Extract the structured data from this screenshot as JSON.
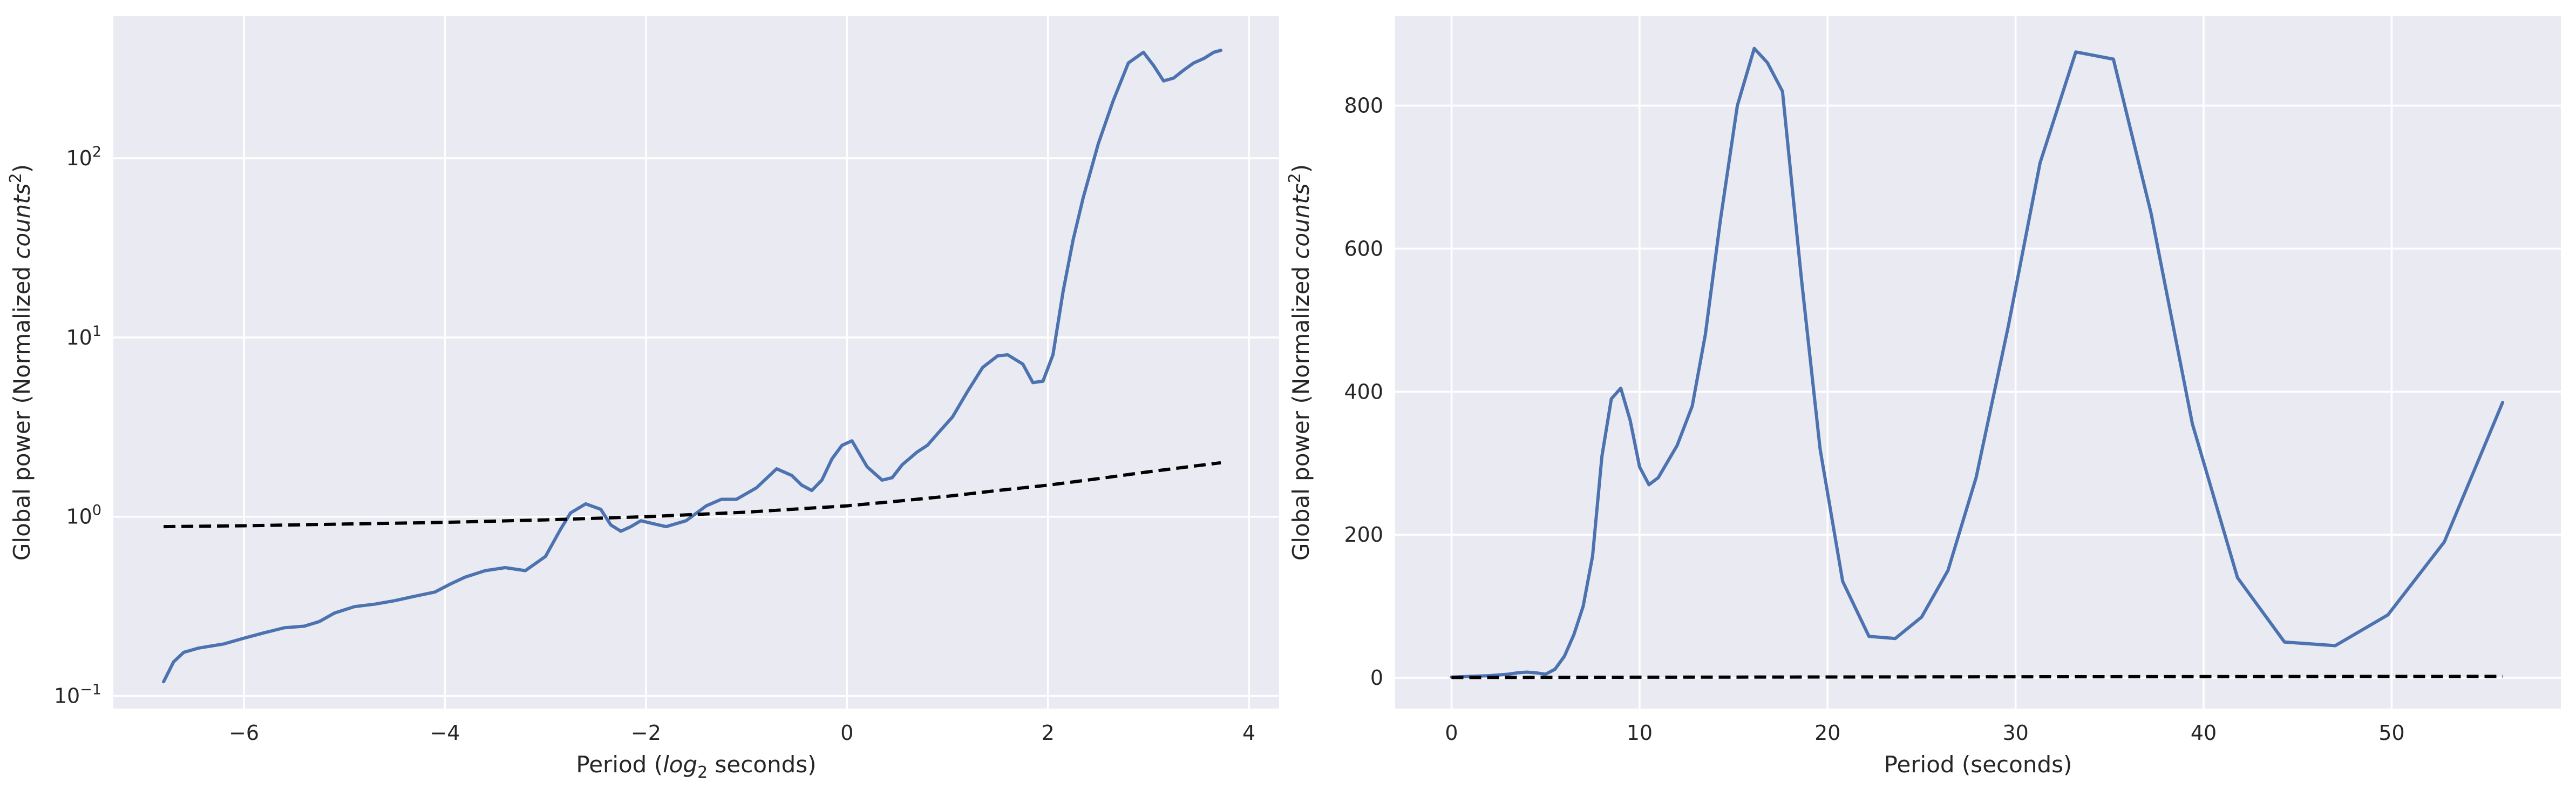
{
  "chart_data": [
    {
      "type": "line",
      "xlabel": "Period (log2 seconds)",
      "xlabel_parts": {
        "pre": "Period (",
        "italic": "log",
        "sub": "2",
        "post": " seconds)"
      },
      "ylabel": "Global power (Normalized counts²)",
      "ylabel_parts": {
        "pre": "Global power (Normalized ",
        "italic": "counts",
        "sup": "2",
        "post": ")"
      },
      "xlim": [
        -7.3,
        4.3
      ],
      "ylim": [
        0.085,
        620
      ],
      "yscale": "log",
      "xticks": [
        -6,
        -4,
        -2,
        0,
        2,
        4
      ],
      "xtick_labels": [
        "−6",
        "−4",
        "−2",
        "0",
        "2",
        "4"
      ],
      "yticks": [
        0.1,
        1,
        10,
        100
      ],
      "ytick_labels": [
        {
          "base": "10",
          "exp": "−1"
        },
        {
          "base": "10",
          "exp": "0"
        },
        {
          "base": "10",
          "exp": "1"
        },
        {
          "base": "10",
          "exp": "2"
        }
      ],
      "grid": true,
      "series": [
        {
          "style": "solid",
          "color": "#4c72b0",
          "x": [
            -6.8,
            -6.7,
            -6.6,
            -6.45,
            -6.2,
            -6.0,
            -5.8,
            -5.6,
            -5.4,
            -5.25,
            -5.1,
            -4.9,
            -4.7,
            -4.5,
            -4.3,
            -4.1,
            -3.95,
            -3.8,
            -3.6,
            -3.4,
            -3.2,
            -3.0,
            -2.85,
            -2.75,
            -2.6,
            -2.45,
            -2.35,
            -2.25,
            -2.15,
            -2.05,
            -1.95,
            -1.8,
            -1.6,
            -1.4,
            -1.25,
            -1.1,
            -0.9,
            -0.7,
            -0.55,
            -0.45,
            -0.35,
            -0.25,
            -0.15,
            -0.05,
            0.05,
            0.2,
            0.35,
            0.45,
            0.55,
            0.7,
            0.8,
            0.9,
            1.05,
            1.2,
            1.35,
            1.5,
            1.6,
            1.75,
            1.85,
            1.95,
            2.05,
            2.15,
            2.25,
            2.35,
            2.5,
            2.65,
            2.8,
            2.95,
            3.05,
            3.15,
            3.25,
            3.35,
            3.45,
            3.55,
            3.65,
            3.72
          ],
          "y": [
            0.12,
            0.155,
            0.175,
            0.185,
            0.195,
            0.21,
            0.225,
            0.24,
            0.245,
            0.26,
            0.29,
            0.315,
            0.325,
            0.34,
            0.36,
            0.38,
            0.42,
            0.46,
            0.5,
            0.52,
            0.5,
            0.6,
            0.85,
            1.05,
            1.18,
            1.1,
            0.9,
            0.83,
            0.88,
            0.95,
            0.92,
            0.88,
            0.95,
            1.15,
            1.25,
            1.25,
            1.45,
            1.85,
            1.7,
            1.5,
            1.4,
            1.6,
            2.1,
            2.5,
            2.65,
            1.9,
            1.6,
            1.65,
            1.95,
            2.3,
            2.5,
            2.9,
            3.6,
            5.0,
            6.8,
            7.9,
            8.0,
            7.1,
            5.6,
            5.7,
            8.0,
            18.0,
            35.0,
            60.0,
            120.0,
            210.0,
            340.0,
            390.0,
            330.0,
            270.0,
            280.0,
            310.0,
            340.0,
            360.0,
            390.0,
            400.0
          ]
        },
        {
          "style": "dashed",
          "color": "#000000",
          "x": [
            -6.8,
            -6.0,
            -5.0,
            -4.0,
            -3.0,
            -2.0,
            -1.0,
            0.0,
            0.5,
            1.0,
            1.5,
            2.0,
            2.5,
            3.0,
            3.4,
            3.72
          ],
          "y": [
            0.88,
            0.89,
            0.91,
            0.93,
            0.96,
            1.0,
            1.06,
            1.15,
            1.22,
            1.3,
            1.4,
            1.5,
            1.63,
            1.78,
            1.9,
            2.0
          ]
        }
      ]
    },
    {
      "type": "line",
      "xlabel": "Period (seconds)",
      "ylabel": "Global power (Normalized counts²)",
      "ylabel_parts": {
        "pre": "Global power (Normalized ",
        "italic": "counts",
        "sup": "2",
        "post": ")"
      },
      "xlim": [
        -3,
        59
      ],
      "ylim": [
        -43,
        925
      ],
      "yscale": "linear",
      "xticks": [
        0,
        10,
        20,
        30,
        40,
        50
      ],
      "xtick_labels": [
        "0",
        "10",
        "20",
        "30",
        "40",
        "50"
      ],
      "yticks": [
        0,
        200,
        400,
        600,
        800
      ],
      "ytick_labels": [
        "0",
        "200",
        "400",
        "600",
        "800"
      ],
      "grid": true,
      "series": [
        {
          "style": "solid",
          "color": "#4c72b0",
          "x": [
            0.0,
            1.0,
            2.0,
            3.0,
            3.5,
            4.0,
            4.5,
            5.0,
            5.5,
            6.0,
            6.5,
            7.0,
            7.5,
            8.0,
            8.5,
            9.0,
            9.5,
            10.0,
            10.5,
            11.0,
            12.0,
            12.8,
            13.5,
            14.3,
            15.2,
            16.1,
            16.8,
            17.6,
            18.6,
            19.6,
            20.8,
            22.2,
            23.6,
            25.0,
            26.4,
            27.9,
            29.6,
            31.3,
            33.2,
            35.2,
            37.2,
            39.4,
            41.8,
            44.3,
            47.0,
            49.8,
            52.8,
            55.9
          ],
          "y": [
            1,
            2,
            3,
            5,
            7,
            8,
            7,
            5,
            12,
            30,
            60,
            100,
            170,
            310,
            390,
            405,
            360,
            295,
            270,
            280,
            325,
            380,
            480,
            640,
            800,
            880,
            860,
            820,
            560,
            320,
            135,
            58,
            55,
            85,
            150,
            280,
            490,
            720,
            875,
            865,
            650,
            355,
            140,
            50,
            45,
            88,
            190,
            385
          ]
        },
        {
          "style": "dashed",
          "color": "#000000",
          "x": [
            0.0,
            10.0,
            20.0,
            30.0,
            40.0,
            50.0,
            55.9
          ],
          "y": [
            0.5,
            0.9,
            1.2,
            1.5,
            1.7,
            1.9,
            2.0
          ]
        }
      ]
    }
  ]
}
